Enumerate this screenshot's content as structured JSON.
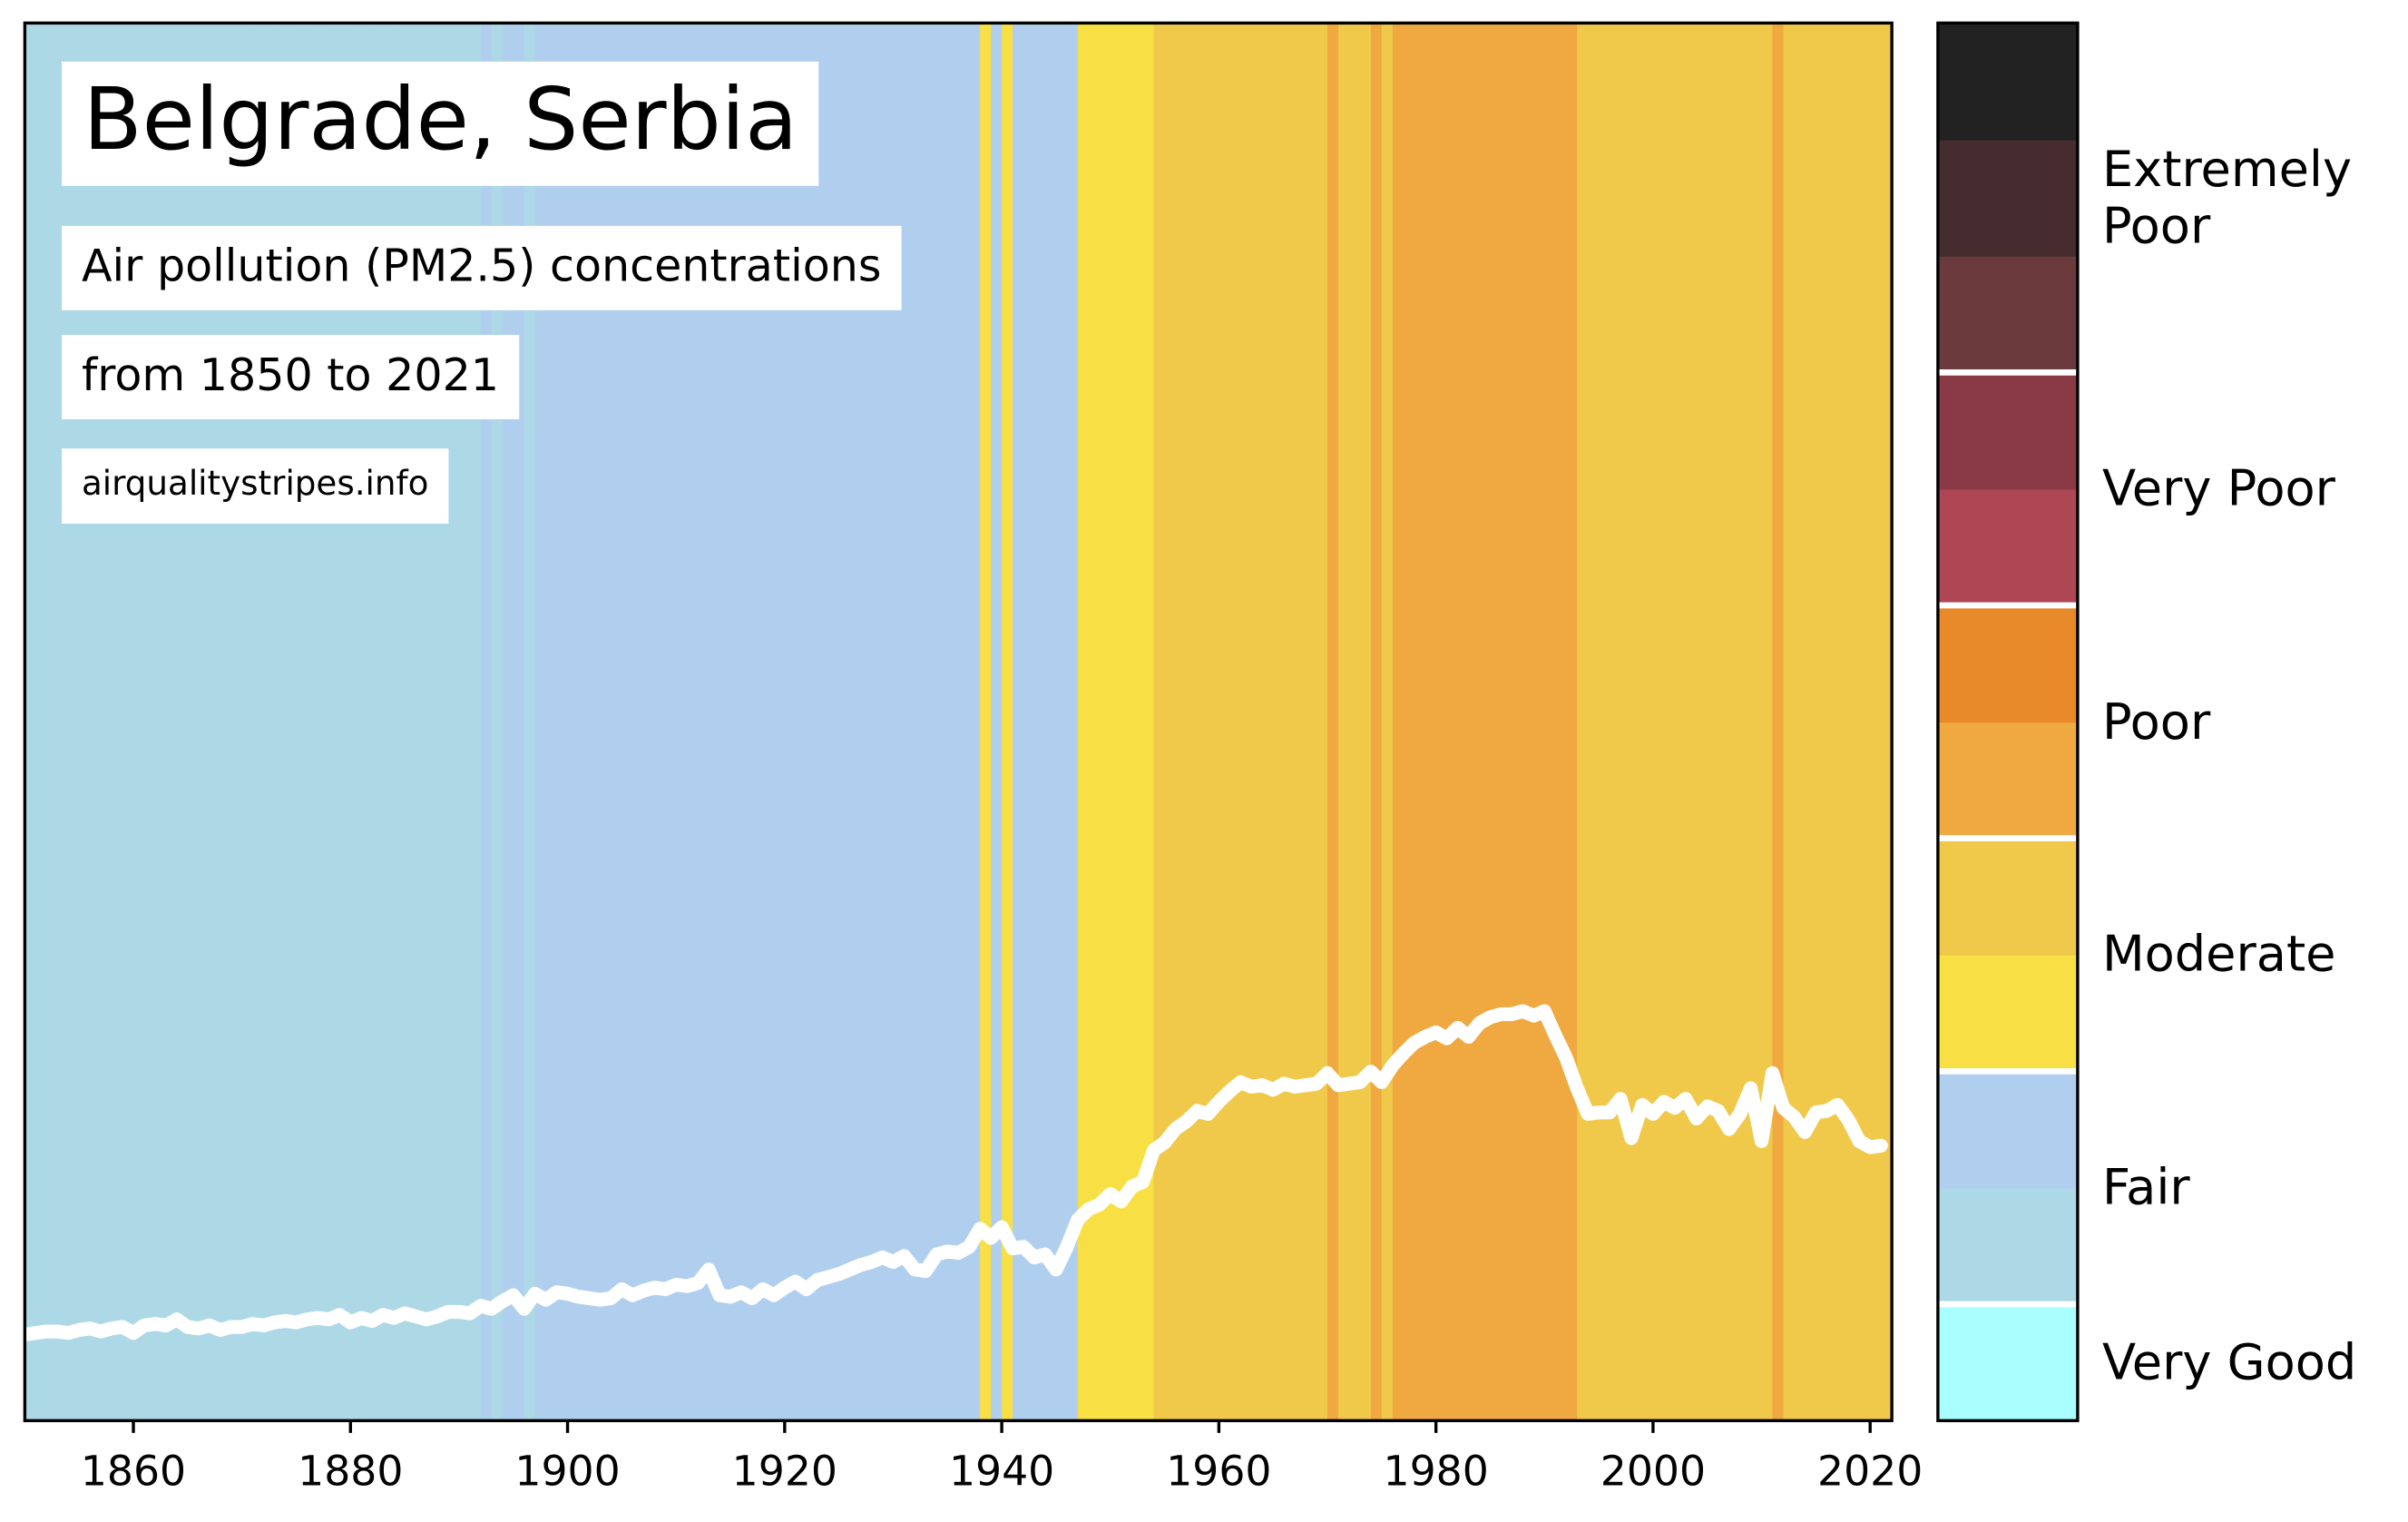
{
  "chart_data": {
    "type": "stripes",
    "title": "Belgrade, Serbia",
    "subtitle": "Air pollution (PM2.5) concentrations",
    "period": "from 1850 to 2021",
    "source": "airqualitystripes.info",
    "x": [
      1850,
      1851,
      1852,
      1853,
      1854,
      1855,
      1856,
      1857,
      1858,
      1859,
      1860,
      1861,
      1862,
      1863,
      1864,
      1865,
      1866,
      1867,
      1868,
      1869,
      1870,
      1871,
      1872,
      1873,
      1874,
      1875,
      1876,
      1877,
      1878,
      1879,
      1880,
      1881,
      1882,
      1883,
      1884,
      1885,
      1886,
      1887,
      1888,
      1889,
      1890,
      1891,
      1892,
      1893,
      1894,
      1895,
      1896,
      1897,
      1898,
      1899,
      1900,
      1901,
      1902,
      1903,
      1904,
      1905,
      1906,
      1907,
      1908,
      1909,
      1910,
      1911,
      1912,
      1913,
      1914,
      1915,
      1916,
      1917,
      1918,
      1919,
      1920,
      1921,
      1922,
      1923,
      1924,
      1925,
      1926,
      1927,
      1928,
      1929,
      1930,
      1931,
      1932,
      1933,
      1934,
      1935,
      1936,
      1937,
      1938,
      1939,
      1940,
      1941,
      1942,
      1943,
      1944,
      1945,
      1946,
      1947,
      1948,
      1949,
      1950,
      1951,
      1952,
      1953,
      1954,
      1955,
      1956,
      1957,
      1958,
      1959,
      1960,
      1961,
      1962,
      1963,
      1964,
      1965,
      1966,
      1967,
      1968,
      1969,
      1970,
      1971,
      1972,
      1973,
      1974,
      1975,
      1976,
      1977,
      1978,
      1979,
      1980,
      1981,
      1982,
      1983,
      1984,
      1985,
      1986,
      1987,
      1988,
      1989,
      1990,
      1991,
      1992,
      1993,
      1994,
      1995,
      1996,
      1997,
      1998,
      1999,
      2000,
      2001,
      2002,
      2003,
      2004,
      2005,
      2006,
      2007,
      2008,
      2009,
      2010,
      2011,
      2012,
      2013,
      2014,
      2015,
      2016,
      2017,
      2018,
      2019,
      2020,
      2021
    ],
    "values": [
      8.2,
      8.3,
      8.4,
      8.4,
      8.3,
      8.5,
      8.6,
      8.4,
      8.6,
      8.7,
      8.3,
      8.8,
      8.9,
      8.8,
      9.2,
      8.7,
      8.6,
      8.8,
      8.5,
      8.7,
      8.7,
      8.9,
      8.8,
      9.0,
      9.1,
      9.0,
      9.2,
      9.3,
      9.2,
      9.5,
      9.0,
      9.3,
      9.1,
      9.5,
      9.3,
      9.6,
      9.4,
      9.2,
      9.4,
      9.7,
      9.7,
      9.6,
      10.1,
      9.9,
      10.4,
      10.8,
      9.9,
      10.9,
      10.5,
      11.0,
      10.9,
      10.7,
      10.6,
      10.5,
      10.6,
      11.2,
      10.8,
      11.1,
      11.3,
      11.2,
      11.5,
      11.4,
      11.6,
      12.5,
      10.8,
      10.7,
      11.0,
      10.6,
      11.2,
      10.8,
      11.3,
      11.7,
      11.2,
      11.8,
      12.0,
      12.2,
      12.5,
      12.8,
      13.0,
      13.3,
      13.0,
      13.4,
      12.5,
      12.4,
      13.5,
      13.7,
      13.6,
      14.0,
      15.2,
      14.6,
      15.3,
      13.9,
      14.0,
      13.3,
      13.5,
      12.5,
      14.0,
      15.8,
      16.5,
      16.8,
      17.5,
      17.0,
      18.0,
      18.3,
      20.4,
      20.9,
      21.8,
      22.3,
      23.0,
      22.8,
      23.6,
      24.3,
      24.9,
      24.6,
      24.7,
      24.4,
      24.8,
      24.6,
      24.7,
      24.8,
      25.5,
      24.7,
      24.8,
      24.9,
      25.6,
      24.9,
      26.0,
      26.8,
      27.5,
      27.9,
      28.2,
      27.8,
      28.5,
      27.9,
      28.8,
      29.2,
      29.4,
      29.4,
      29.6,
      29.3,
      29.6,
      28.0,
      26.5,
      24.5,
      22.8,
      22.9,
      22.9,
      23.8,
      21.2,
      23.4,
      22.8,
      23.6,
      23.2,
      23.8,
      22.5,
      23.3,
      23.0,
      21.8,
      22.8,
      24.5,
      21.0,
      25.5,
      23.2,
      22.6,
      21.6,
      22.9,
      23.0,
      23.4,
      22.4,
      21.0,
      20.6,
      20.7
    ],
    "line_color": "#ffffff",
    "xlim": [
      1850,
      2022
    ],
    "xticks": [
      1860,
      1880,
      1900,
      1920,
      1940,
      1960,
      1980,
      2000,
      2020
    ],
    "ylim": [
      2.5,
      95
    ],
    "colorbar": {
      "bounds": [
        0,
        5,
        10,
        15,
        20,
        25,
        30,
        35,
        40,
        45,
        50,
        55,
        60
      ],
      "colors": [
        "#a8fffe",
        "#add8e6",
        "#b0cfee",
        "#f8e044",
        "#f0c84a",
        "#f0a840",
        "#e8892a",
        "#ae4653",
        "#8a3a45",
        "#6a3a3c",
        "#452d2f",
        "#222222"
      ],
      "categories": [
        {
          "label": "Very Good",
          "from": 0,
          "to": 5
        },
        {
          "label": "Fair",
          "from": 5,
          "to": 15
        },
        {
          "label": "Moderate",
          "from": 15,
          "to": 25
        },
        {
          "label": "Poor",
          "from": 25,
          "to": 35
        },
        {
          "label": "Very Poor",
          "from": 35,
          "to": 45
        },
        {
          "label": "Extremely Poor",
          "from": 45,
          "to": 60
        }
      ]
    }
  }
}
